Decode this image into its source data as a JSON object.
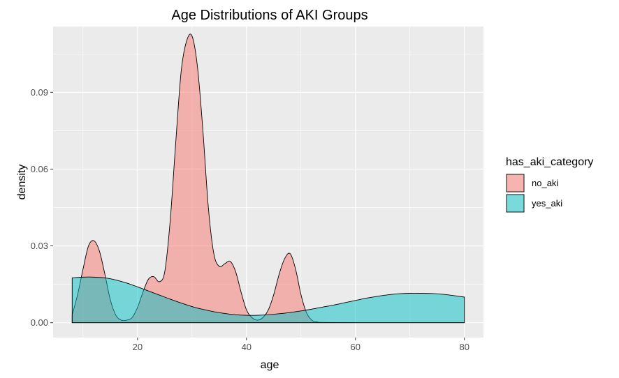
{
  "chart_data": {
    "type": "area",
    "subtype": "density",
    "title": "Age Distributions of AKI Groups",
    "xlabel": "age",
    "ylabel": "density",
    "xlim": [
      4.5,
      83.5
    ],
    "ylim": [
      -0.0058,
      0.1157
    ],
    "x_ticks": [
      20,
      40,
      60,
      80
    ],
    "x_tick_labels": [
      "20",
      "40",
      "60",
      "80"
    ],
    "y_ticks": [
      0.0,
      0.03,
      0.06,
      0.09
    ],
    "y_tick_labels": [
      "0.00",
      "0.03",
      "0.06",
      "0.09"
    ],
    "grid": true,
    "legend": {
      "title": "has_aki_category",
      "placement": "right"
    },
    "series": [
      {
        "name": "no_aki",
        "fill": "#F8766D",
        "x": [
          8,
          9,
          10,
          11,
          12,
          13,
          14,
          15,
          16,
          17,
          18,
          19,
          20,
          21,
          22,
          23,
          24,
          25,
          26,
          27,
          28,
          29,
          30,
          31,
          32,
          33,
          34,
          35,
          36,
          37,
          38,
          39,
          40,
          41,
          42,
          43,
          44,
          45,
          46,
          47,
          48,
          49,
          50,
          51,
          52,
          53,
          54,
          60,
          70,
          80
        ],
        "y": [
          0.003,
          0.011,
          0.021,
          0.03,
          0.032,
          0.028,
          0.019,
          0.009,
          0.003,
          0.001,
          0.001,
          0.002,
          0.006,
          0.012,
          0.017,
          0.018,
          0.016,
          0.02,
          0.04,
          0.07,
          0.098,
          0.11,
          0.112,
          0.1,
          0.075,
          0.045,
          0.027,
          0.022,
          0.023,
          0.024,
          0.02,
          0.012,
          0.005,
          0.002,
          0.001,
          0.002,
          0.005,
          0.011,
          0.019,
          0.025,
          0.027,
          0.021,
          0.011,
          0.004,
          0.001,
          0.0003,
          0.0001,
          0.0,
          0.0,
          0.0
        ]
      },
      {
        "name": "yes_aki",
        "fill": "#00BFC4",
        "x": [
          8,
          10,
          12,
          14,
          16,
          18,
          20,
          22,
          24,
          26,
          28,
          30,
          32,
          34,
          36,
          38,
          40,
          42,
          44,
          46,
          48,
          50,
          52,
          54,
          56,
          58,
          60,
          62,
          64,
          66,
          68,
          70,
          72,
          74,
          76,
          78,
          80
        ],
        "y": [
          0.0175,
          0.0178,
          0.0178,
          0.0175,
          0.0167,
          0.0155,
          0.014,
          0.0124,
          0.0108,
          0.0092,
          0.0077,
          0.0063,
          0.0052,
          0.0043,
          0.0036,
          0.0031,
          0.0029,
          0.0029,
          0.0031,
          0.0035,
          0.004,
          0.0046,
          0.0053,
          0.0061,
          0.0069,
          0.0078,
          0.0087,
          0.0096,
          0.0103,
          0.0109,
          0.0113,
          0.0115,
          0.0115,
          0.0114,
          0.0111,
          0.0106,
          0.01
        ]
      }
    ]
  }
}
